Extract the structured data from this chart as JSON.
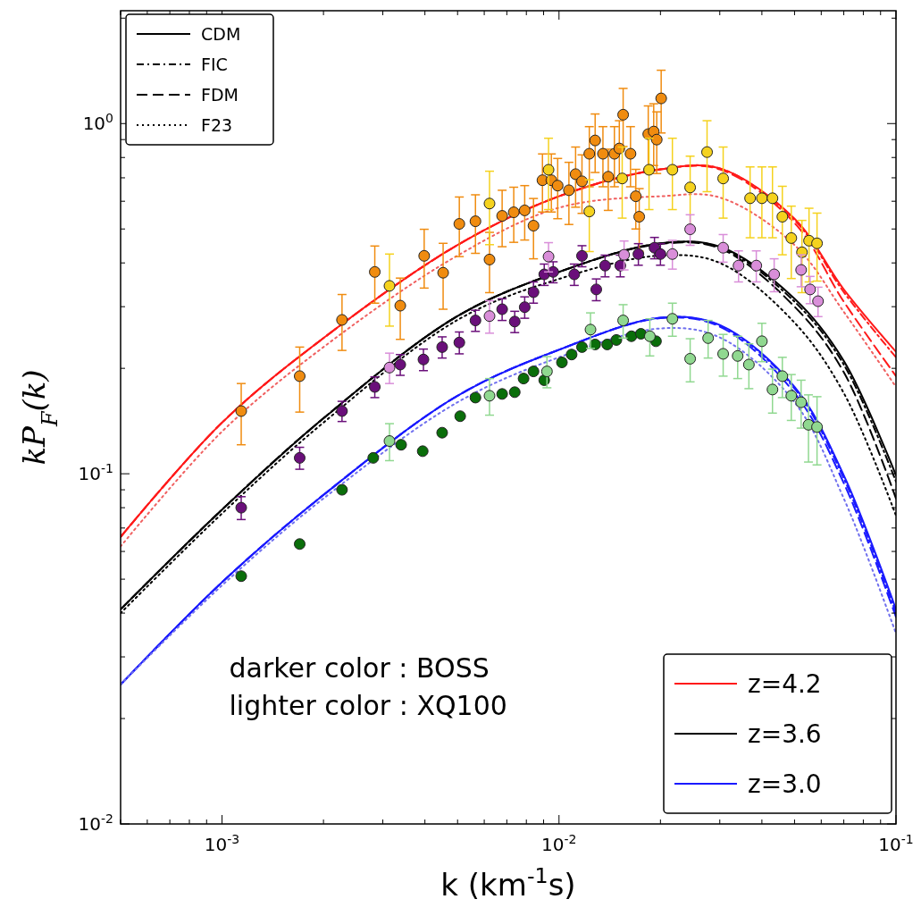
{
  "chart_data": {
    "type": "line",
    "xlabel": "k (km$^{-1}$s)",
    "ylabel": "kP$_{F}$(k)",
    "log": "xy",
    "legend": "top left",
    "xlim": [
      0.0005,
      0.1
    ],
    "ylim": [
      0.01,
      2.1
    ],
    "xticks": [
      {
        "value": 0.0005,
        "label": null
      },
      {
        "value": 0.0006,
        "label": null
      },
      {
        "value": 0.0007,
        "label": null
      },
      {
        "value": 0.0008,
        "label": null
      },
      {
        "value": 0.0009,
        "label": null
      },
      {
        "value": 0.001,
        "label": "10$^{-3}$"
      },
      {
        "value": 0.002,
        "label": null
      },
      {
        "value": 0.003,
        "label": null
      },
      {
        "value": 0.004,
        "label": null
      },
      {
        "value": 0.005,
        "label": null
      },
      {
        "value": 0.006,
        "label": null
      },
      {
        "value": 0.007,
        "label": null
      },
      {
        "value": 0.008,
        "label": null
      },
      {
        "value": 0.009,
        "label": null
      },
      {
        "value": 0.01,
        "label": "10$^{-2}$"
      },
      {
        "value": 0.02,
        "label": null
      },
      {
        "value": 0.03,
        "label": null
      },
      {
        "value": 0.04,
        "label": null
      },
      {
        "value": 0.05,
        "label": null
      },
      {
        "value": 0.06,
        "label": null
      },
      {
        "value": 0.07,
        "label": null
      },
      {
        "value": 0.08,
        "label": null
      },
      {
        "value": 0.09,
        "label": null
      },
      {
        "value": 0.1,
        "label": "10$^{-1}$"
      }
    ],
    "yticks": [
      {
        "value": 0.01,
        "label": "10$^{-2}$"
      },
      {
        "value": 0.02,
        "label": null
      },
      {
        "value": 0.03,
        "label": null
      },
      {
        "value": 0.04,
        "label": null
      },
      {
        "value": 0.05,
        "label": null
      },
      {
        "value": 0.06,
        "label": null
      },
      {
        "value": 0.07,
        "label": null
      },
      {
        "value": 0.08,
        "label": null
      },
      {
        "value": 0.09,
        "label": null
      },
      {
        "value": 0.1,
        "label": "10$^{-1}$"
      },
      {
        "value": 0.2,
        "label": null
      },
      {
        "value": 0.3,
        "label": null
      },
      {
        "value": 0.4,
        "label": null
      },
      {
        "value": 0.5,
        "label": null
      },
      {
        "value": 0.6,
        "label": null
      },
      {
        "value": 0.7,
        "label": null
      },
      {
        "value": 0.8,
        "label": null
      },
      {
        "value": 0.9,
        "label": null
      },
      {
        "value": 1,
        "label": "10$^{0}$"
      },
      {
        "value": 2,
        "label": null
      }
    ],
    "x": [
      0.0005,
      0.001,
      0.002,
      0.005,
      0.01,
      0.02,
      0.03,
      0.05,
      0.07,
      0.1
    ],
    "annotations": [
      "darker color : BOSS",
      "lighter color : XQ100"
    ],
    "series": [
      {
        "name": "CDM",
        "color": "#000000",
        "line_style": "solid",
        "values": [
          null,
          null,
          null,
          null,
          null,
          null,
          null,
          null,
          null,
          null
        ]
      },
      {
        "name": "z=4.2",
        "color": "#ff1a1a",
        "line_style": "solid",
        "values": [
          0.066,
          0.14,
          0.244,
          0.45,
          0.62,
          0.74,
          0.745,
          0.535,
          0.336,
          0.223
        ]
      },
      {
        "color": "#ff1a1a",
        "line_style": "dashdot",
        "values": [
          0.066,
          0.14,
          0.244,
          0.45,
          0.62,
          0.74,
          0.745,
          0.53,
          0.33,
          0.215
        ]
      },
      {
        "color": "#ff1a1a",
        "line_style": "dashed",
        "values": [
          0.066,
          0.14,
          0.244,
          0.45,
          0.62,
          0.74,
          0.74,
          0.52,
          0.31,
          0.19
        ]
      },
      {
        "color": "#f06060",
        "line_style": "dotted",
        "values": [
          0.062,
          0.132,
          0.23,
          0.42,
          0.575,
          0.62,
          0.615,
          0.45,
          0.29,
          0.177
        ]
      },
      {
        "name": "z=3.6",
        "color": "#000000",
        "line_style": "solid",
        "values": [
          0.041,
          0.079,
          0.144,
          0.282,
          0.377,
          0.455,
          0.445,
          0.316,
          0.21,
          0.099
        ]
      },
      {
        "name": "FIC",
        "color": "#000000",
        "line_style": "dashdot",
        "values": [
          0.041,
          0.079,
          0.144,
          0.282,
          0.377,
          0.455,
          0.443,
          0.31,
          0.205,
          0.095
        ]
      },
      {
        "name": "FDM",
        "color": "#000000",
        "line_style": "dashed",
        "values": [
          0.041,
          0.079,
          0.144,
          0.282,
          0.377,
          0.453,
          0.44,
          0.3,
          0.195,
          0.085
        ]
      },
      {
        "name": "F23",
        "color": "#000000",
        "line_style": "dotted",
        "values": [
          0.04,
          0.077,
          0.14,
          0.275,
          0.36,
          0.42,
          0.4,
          0.27,
          0.17,
          0.076
        ]
      },
      {
        "name": "z=3.0",
        "color": "#1a1aff",
        "line_style": "solid",
        "values": [
          0.025,
          0.049,
          0.087,
          0.167,
          0.226,
          0.279,
          0.266,
          0.177,
          0.099,
          0.041
        ]
      },
      {
        "color": "#1a1aff",
        "line_style": "dashdot",
        "values": [
          0.025,
          0.049,
          0.087,
          0.167,
          0.226,
          0.279,
          0.265,
          0.175,
          0.097,
          0.04
        ]
      },
      {
        "color": "#1a1aff",
        "line_style": "dashed",
        "values": [
          0.025,
          0.049,
          0.087,
          0.167,
          0.226,
          0.278,
          0.263,
          0.17,
          0.094,
          0.039
        ]
      },
      {
        "color": "#7070ee",
        "line_style": "dotted",
        "values": [
          0.025,
          0.048,
          0.085,
          0.16,
          0.215,
          0.26,
          0.245,
          0.16,
          0.085,
          0.035
        ]
      },
      {
        "type": "scatter",
        "marker": "circle",
        "color": "#f08c10",
        "x": [
          0.00114,
          0.0017,
          0.00227,
          0.00284,
          0.00338,
          0.00398,
          0.00453,
          0.00506,
          0.00565,
          0.00622,
          0.00678,
          0.00734,
          0.00791,
          0.0084,
          0.00893,
          0.00949,
          0.00991,
          0.0107,
          0.0112,
          0.0117,
          0.0123,
          0.0128,
          0.0135,
          0.014,
          0.0146,
          0.0151,
          0.0155,
          0.0163,
          0.0169,
          0.0173,
          0.0184,
          0.0191,
          0.0195,
          0.0201
        ],
        "values": [
          0.151,
          0.19,
          0.275,
          0.377,
          0.302,
          0.419,
          0.375,
          0.517,
          0.526,
          0.409,
          0.545,
          0.558,
          0.565,
          0.511,
          0.689,
          0.689,
          0.665,
          0.645,
          0.717,
          0.684,
          0.82,
          0.895,
          0.82,
          0.705,
          0.82,
          0.849,
          1.06,
          0.82,
          0.62,
          0.542,
          0.933,
          0.949,
          0.9,
          1.18
        ],
        "errors": [
          0.03,
          0.04,
          0.05,
          0.07,
          0.06,
          0.08,
          0.08,
          0.1,
          0.1,
          0.08,
          0.1,
          0.1,
          0.1,
          0.1,
          0.13,
          0.13,
          0.13,
          0.13,
          0.14,
          0.13,
          0.16,
          0.17,
          0.16,
          0.14,
          0.16,
          0.17,
          0.2,
          0.16,
          0.12,
          0.11,
          0.19,
          0.19,
          0.18,
          0.24
        ]
      },
      {
        "type": "scatter",
        "marker": "circle",
        "color": "#f5d21e",
        "x": [
          0.00314,
          0.00622,
          0.00931,
          0.0123,
          0.0154,
          0.0185,
          0.0217,
          0.0245,
          0.0275,
          0.0307,
          0.0369,
          0.04,
          0.043,
          0.046,
          0.0489,
          0.0526,
          0.0552,
          0.0583
        ],
        "values": [
          0.344,
          0.591,
          0.738,
          0.561,
          0.697,
          0.738,
          0.738,
          0.657,
          0.829,
          0.697,
          0.612,
          0.612,
          0.612,
          0.542,
          0.471,
          0.429,
          0.463,
          0.455
        ],
        "errors": [
          0.08,
          0.14,
          0.17,
          0.13,
          0.16,
          0.17,
          0.17,
          0.15,
          0.19,
          0.16,
          0.14,
          0.14,
          0.14,
          0.12,
          0.11,
          0.1,
          0.11,
          0.1
        ]
      },
      {
        "type": "scatter",
        "marker": "circle",
        "color": "#6a0f7a",
        "x": [
          0.00114,
          0.0017,
          0.00227,
          0.00284,
          0.00338,
          0.00396,
          0.0045,
          0.00506,
          0.00565,
          0.00678,
          0.00739,
          0.00791,
          0.0084,
          0.00904,
          0.00961,
          0.0111,
          0.0117,
          0.0129,
          0.0137,
          0.0152,
          0.0172,
          0.0192,
          0.02
        ],
        "values": [
          0.08,
          0.111,
          0.151,
          0.177,
          0.205,
          0.212,
          0.23,
          0.237,
          0.274,
          0.295,
          0.272,
          0.299,
          0.33,
          0.371,
          0.377,
          0.371,
          0.419,
          0.336,
          0.393,
          0.393,
          0.424,
          0.442,
          0.424
        ],
        "errors": [
          0.006,
          0.008,
          0.01,
          0.012,
          0.014,
          0.015,
          0.016,
          0.017,
          0.019,
          0.021,
          0.019,
          0.021,
          0.023,
          0.026,
          0.026,
          0.026,
          0.029,
          0.024,
          0.028,
          0.028,
          0.03,
          0.031,
          0.03
        ]
      },
      {
        "type": "scatter",
        "marker": "circle",
        "color": "#d98ed9",
        "x": [
          0.00314,
          0.00622,
          0.00931,
          0.0156,
          0.0217,
          0.0245,
          0.0307,
          0.0341,
          0.0385,
          0.0435,
          0.0523,
          0.0556,
          0.0587
        ],
        "values": [
          0.201,
          0.282,
          0.417,
          0.422,
          0.424,
          0.499,
          0.442,
          0.393,
          0.393,
          0.371,
          0.382,
          0.336,
          0.311
        ],
        "errors": [
          0.02,
          0.03,
          0.04,
          0.04,
          0.04,
          0.05,
          0.04,
          0.04,
          0.04,
          0.04,
          0.04,
          0.03,
          0.03
        ]
      },
      {
        "type": "scatter",
        "marker": "circle",
        "color": "#0a6e0a",
        "x": [
          0.00114,
          0.0017,
          0.00227,
          0.00281,
          0.0034,
          0.00394,
          0.0045,
          0.00509,
          0.00565,
          0.00678,
          0.00739,
          0.00785,
          0.0084,
          0.00904,
          0.0102,
          0.0109,
          0.0117,
          0.0128,
          0.0139,
          0.0148,
          0.0164,
          0.0175,
          0.0194
        ],
        "values": [
          0.051,
          0.063,
          0.09,
          0.111,
          0.121,
          0.116,
          0.131,
          0.146,
          0.165,
          0.169,
          0.171,
          0.187,
          0.196,
          0.185,
          0.208,
          0.219,
          0.23,
          0.234,
          0.234,
          0.241,
          0.247,
          0.251,
          0.239
        ]
      },
      {
        "type": "scatter",
        "marker": "circle",
        "color": "#90d890",
        "x": [
          0.00314,
          0.00622,
          0.00921,
          0.0124,
          0.0155,
          0.0186,
          0.0217,
          0.0245,
          0.0277,
          0.0307,
          0.0339,
          0.0366,
          0.04,
          0.043,
          0.046,
          0.0489,
          0.0523,
          0.055,
          0.0583
        ],
        "values": [
          0.124,
          0.167,
          0.196,
          0.258,
          0.274,
          0.247,
          0.277,
          0.213,
          0.244,
          0.22,
          0.217,
          0.205,
          0.239,
          0.174,
          0.19,
          0.167,
          0.16,
          0.138,
          0.136
        ],
        "errors": [
          0.015,
          0.02,
          0.02,
          0.03,
          0.03,
          0.03,
          0.03,
          0.03,
          0.03,
          0.03,
          0.03,
          0.03,
          0.03,
          0.025,
          0.025,
          0.025,
          0.025,
          0.03,
          0.03
        ]
      }
    ]
  }
}
